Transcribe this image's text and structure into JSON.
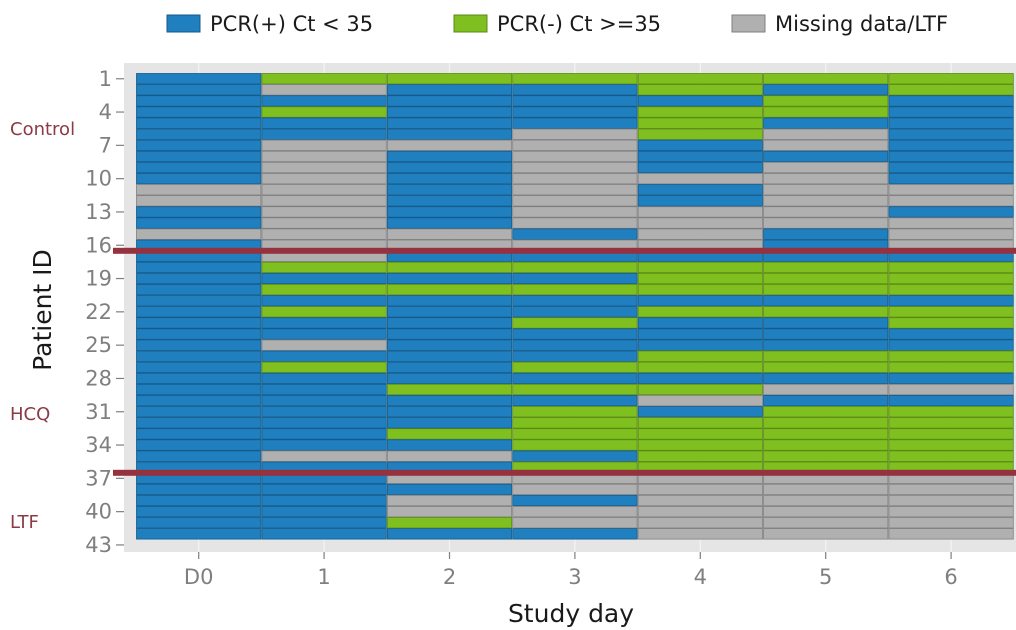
{
  "chart_data": {
    "type": "heatmap",
    "title": "",
    "xlabel": "Study day",
    "ylabel": "Patient ID",
    "days": [
      "D0",
      "1",
      "2",
      "3",
      "4",
      "5",
      "6"
    ],
    "y_tick_labels": [
      1,
      4,
      7,
      10,
      13,
      16,
      19,
      22,
      25,
      28,
      31,
      34,
      37,
      40,
      43
    ],
    "legend_position": "top",
    "legend": [
      {
        "key": "P",
        "label": "PCR(+) Ct < 35",
        "color": "#1f7fbf"
      },
      {
        "key": "N",
        "label": "PCR(-) Ct >=35",
        "color": "#7fbf1f"
      },
      {
        "key": "M",
        "label": "Missing data/LTF",
        "color": "#b0b0b0"
      }
    ],
    "groups": [
      {
        "label": "Control",
        "first_patient": 1,
        "last_patient": 16
      },
      {
        "label": "HCQ",
        "first_patient": 17,
        "last_patient": 36
      },
      {
        "label": "LTF",
        "first_patient": 37,
        "last_patient": 42
      }
    ],
    "group_separator_color": "#953240",
    "patients": [
      {
        "id": 1,
        "status": "PNNNNNN"
      },
      {
        "id": 2,
        "status": "PMPPNPN"
      },
      {
        "id": 3,
        "status": "PPPPPNP"
      },
      {
        "id": 4,
        "status": "PNPPNNP"
      },
      {
        "id": 5,
        "status": "PPPPNPP"
      },
      {
        "id": 6,
        "status": "PPPMNMP"
      },
      {
        "id": 7,
        "status": "PMMMPMP"
      },
      {
        "id": 8,
        "status": "PMPMPPP"
      },
      {
        "id": 9,
        "status": "PMPMPMP"
      },
      {
        "id": 10,
        "status": "PMPMMMP"
      },
      {
        "id": 11,
        "status": "MMPMPMM"
      },
      {
        "id": 12,
        "status": "MMPMPMM"
      },
      {
        "id": 13,
        "status": "PMPMMMP"
      },
      {
        "id": 14,
        "status": "PMPMMMM"
      },
      {
        "id": 15,
        "status": "MMMPMPM"
      },
      {
        "id": 16,
        "status": "PMMMMPM"
      },
      {
        "id": 17,
        "status": "PMPPPPP"
      },
      {
        "id": 18,
        "status": "PNNNNNN"
      },
      {
        "id": 19,
        "status": "PPPPNNN"
      },
      {
        "id": 20,
        "status": "PNNNNNN"
      },
      {
        "id": 21,
        "status": "PPPPPPP"
      },
      {
        "id": 22,
        "status": "PNPPNNN"
      },
      {
        "id": 23,
        "status": "PPPNPPN"
      },
      {
        "id": 24,
        "status": "PPPPPPP"
      },
      {
        "id": 25,
        "status": "PMPPPPP"
      },
      {
        "id": 26,
        "status": "PPPPNNN"
      },
      {
        "id": 27,
        "status": "PNPNNNN"
      },
      {
        "id": 28,
        "status": "PPPPPPP"
      },
      {
        "id": 29,
        "status": "PPNNNMM"
      },
      {
        "id": 30,
        "status": "PPPPMPP"
      },
      {
        "id": 31,
        "status": "PPPNPNN"
      },
      {
        "id": 32,
        "status": "PPPNNNN"
      },
      {
        "id": 33,
        "status": "PPNNNNN"
      },
      {
        "id": 34,
        "status": "PPPNNNN"
      },
      {
        "id": 35,
        "status": "PMMPNNN"
      },
      {
        "id": 36,
        "status": "PPPNNNN"
      },
      {
        "id": 37,
        "status": "PPMMMMM"
      },
      {
        "id": 38,
        "status": "PPPMMMM"
      },
      {
        "id": 39,
        "status": "PPMPMMM"
      },
      {
        "id": 40,
        "status": "PPMMMMM"
      },
      {
        "id": 41,
        "status": "PPNMMMM"
      },
      {
        "id": 42,
        "status": "PPPPMMM"
      }
    ]
  }
}
